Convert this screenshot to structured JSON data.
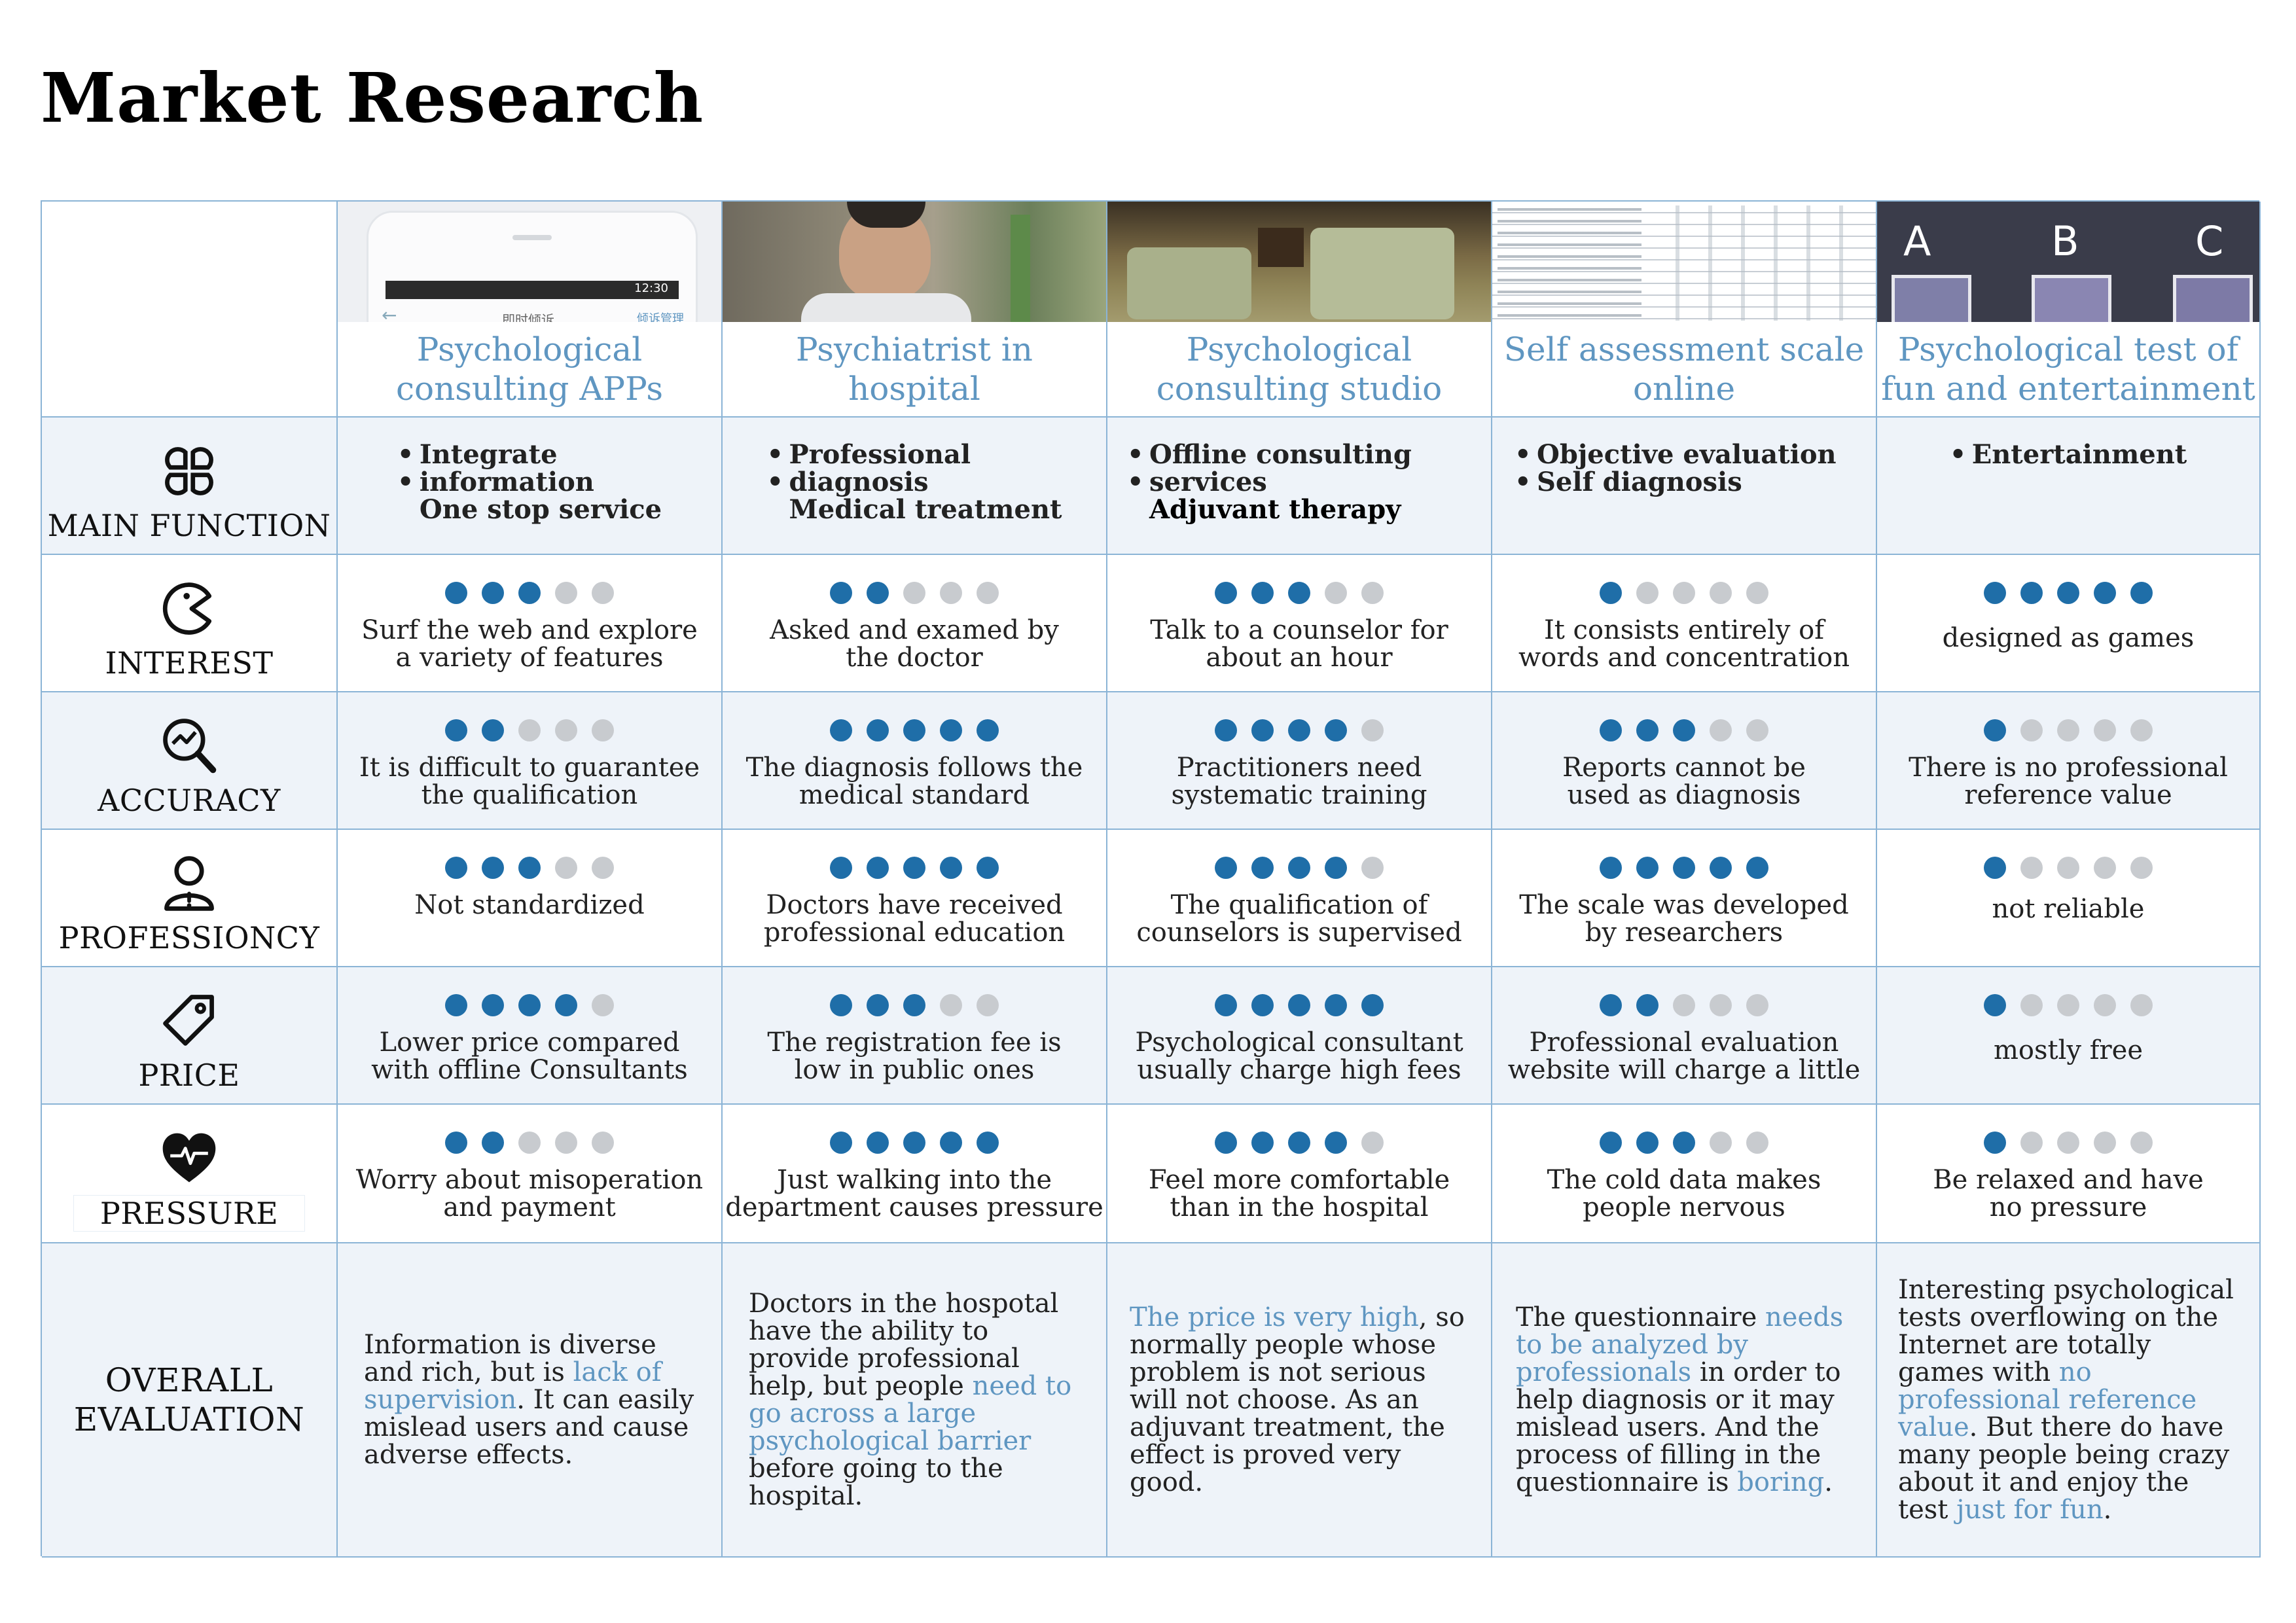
{
  "page_title": "Market Research",
  "columns": [
    {
      "title": "Psychological consulting APPs",
      "thumb": "app-screenshot",
      "thumb_text": {
        "time": "12:30",
        "left": "即时倾诉",
        "right": "倾诉管理"
      }
    },
    {
      "title": "Psychiatrist in hospital",
      "thumb": "doctor-photo"
    },
    {
      "title": "Psychological consulting studio",
      "thumb": "studio-photo"
    },
    {
      "title": "Self assessment scale online",
      "thumb": "questionnaire-screenshot"
    },
    {
      "title": "Psychological test of fun and entertainment",
      "thumb": "abc-test-image",
      "thumb_text": {
        "a": "A",
        "b": "B",
        "c": "C"
      }
    }
  ],
  "rows": [
    {
      "label": "MAIN FUNCTION",
      "icon": "four-petal-icon"
    },
    {
      "label": "INTEREST",
      "icon": "pacman-icon"
    },
    {
      "label": "ACCURACY",
      "icon": "magnifier-chart-icon"
    },
    {
      "label": "PROFESSIONCY",
      "icon": "person-warning-icon"
    },
    {
      "label": "PRICE",
      "icon": "price-tag-icon"
    },
    {
      "label": "PRESSURE",
      "icon": "heartbeat-icon"
    },
    {
      "label": "OVERALL EVALUATION",
      "label_lines": [
        "OVERALL",
        "EVALUATION"
      ]
    }
  ],
  "main_function": [
    {
      "bullets": [
        "Integrate",
        "information"
      ],
      "extra": "One stop service"
    },
    {
      "bullets": [
        "Professional",
        "diagnosis"
      ],
      "extra": "Medical treatment"
    },
    {
      "bullets": [
        "Offline consulting",
        "services"
      ],
      "extra": "Adjuvant therapy"
    },
    {
      "bullets": [
        "Objective evaluation",
        "Self diagnosis"
      ],
      "extra": ""
    },
    {
      "bullets": [
        "Entertainment"
      ],
      "extra": ""
    }
  ],
  "ratings": {
    "max": 5,
    "interest": [
      {
        "score": 3,
        "text": [
          "Surf the web and explore",
          "a variety of features"
        ]
      },
      {
        "score": 2,
        "text": [
          "Asked and examed by",
          "the doctor"
        ]
      },
      {
        "score": 3,
        "text": [
          "Talk to a counselor for",
          "about an hour"
        ]
      },
      {
        "score": 1,
        "text": [
          "It consists entirely of",
          "words and concentration"
        ]
      },
      {
        "score": 5,
        "text": [
          "designed as games"
        ]
      }
    ],
    "accuracy": [
      {
        "score": 2,
        "text": [
          "It is difficult to guarantee",
          "the qualification"
        ]
      },
      {
        "score": 5,
        "text": [
          "The diagnosis follows the",
          "medical standard"
        ]
      },
      {
        "score": 4,
        "text": [
          "Practitioners need",
          "systematic training"
        ]
      },
      {
        "score": 3,
        "text": [
          "Reports cannot be",
          "used as diagnosis"
        ]
      },
      {
        "score": 1,
        "text": [
          "There is no professional",
          "reference value"
        ]
      }
    ],
    "professiency": [
      {
        "score": 3,
        "text": [
          "Not standardized"
        ]
      },
      {
        "score": 5,
        "text": [
          "Doctors have received",
          "professional education"
        ]
      },
      {
        "score": 4,
        "text": [
          "The qualification of",
          "counselors is supervised"
        ]
      },
      {
        "score": 5,
        "text": [
          "The scale was developed",
          "by researchers"
        ]
      },
      {
        "score": 1,
        "text": [
          "not reliable"
        ]
      }
    ],
    "price": [
      {
        "score": 4,
        "text": [
          "Lower price compared",
          "with offline Consultants"
        ]
      },
      {
        "score": 3,
        "text": [
          "The registration fee is",
          "low in public ones"
        ]
      },
      {
        "score": 5,
        "text": [
          "Psychological consultant",
          "usually charge high fees"
        ]
      },
      {
        "score": 2,
        "text": [
          "Professional evaluation",
          "website will charge a little"
        ]
      },
      {
        "score": 1,
        "text": [
          "mostly free"
        ]
      }
    ],
    "pressure": [
      {
        "score": 2,
        "text": [
          "Worry about misoperation",
          "and payment"
        ]
      },
      {
        "score": 5,
        "text": [
          "Just walking into the",
          "department causes pressure"
        ]
      },
      {
        "score": 4,
        "text": [
          "Feel more comfortable",
          "than in the hospital"
        ]
      },
      {
        "score": 3,
        "text": [
          "The cold data makes",
          "people nervous"
        ]
      },
      {
        "score": 1,
        "text": [
          "Be relaxed and have",
          "no pressure"
        ]
      }
    ]
  },
  "overall": [
    [
      {
        "t": "Information is diverse and rich, but is "
      },
      {
        "t": "lack of supervision",
        "hl": true
      },
      {
        "t": ". It can easily mislead users and cause adverse effects."
      }
    ],
    [
      {
        "t": "Doctors in the hospotal have the ability to provide professional help, but people "
      },
      {
        "t": "need to go across a large psychological barrier",
        "hl": true
      },
      {
        "t": " before going to the hospital."
      }
    ],
    [
      {
        "t": "The price is very high",
        "hl": true
      },
      {
        "t": ", so normally people whose problem is not serious will not choose. As an adjuvant treatment, the effect is proved very good."
      }
    ],
    [
      {
        "t": "The questionnaire "
      },
      {
        "t": "needs to be analyzed by professionals",
        "hl": true
      },
      {
        "t": " in order to help diagnosis or it may mislead users. And the process of filling in the questionnaire is "
      },
      {
        "t": "boring",
        "hl": true
      },
      {
        "t": "."
      }
    ],
    [
      {
        "t": "Interesting psychological tests overflowing on the Internet are totally games with "
      },
      {
        "t": "no professional reference value",
        "hl": true
      },
      {
        "t": ". But there do have many people being crazy about it and enjoy the test "
      },
      {
        "t": "just for fun",
        "hl": true
      },
      {
        "t": "."
      }
    ]
  ],
  "colors": {
    "accent": "#5f96c1",
    "dot_on": "#1f6ea8",
    "dot_off": "#c8cbcf",
    "border": "#8bb4d6",
    "shade": "#eef3f9"
  }
}
